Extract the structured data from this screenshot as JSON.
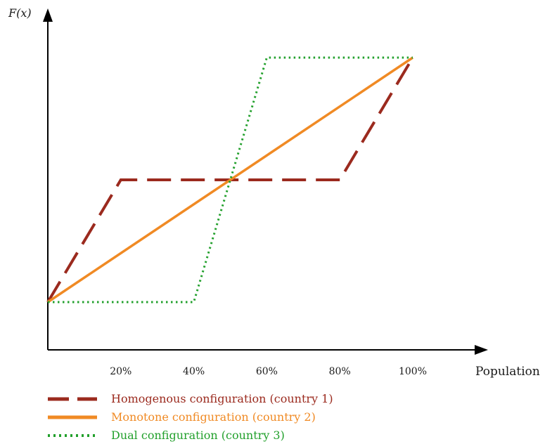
{
  "chart_data": {
    "type": "line",
    "title": "",
    "xlabel": "Population",
    "ylabel": "F(x)",
    "x_ticks": [
      "20%",
      "40%",
      "60%",
      "80%",
      "100%"
    ],
    "xlim": [
      0,
      100
    ],
    "grid": false,
    "legend_position": "bottom-left",
    "series": [
      {
        "name": "Homogenous configuration (country 1)",
        "style": "dashed",
        "color": "#9b2a1e",
        "x": [
          0,
          20,
          80,
          100
        ],
        "y": [
          0.0,
          0.5,
          0.5,
          1.0
        ]
      },
      {
        "name": "Monotone configuration (country 2)",
        "style": "solid",
        "color": "#f08a24",
        "x": [
          0,
          100
        ],
        "y": [
          0.0,
          1.0
        ]
      },
      {
        "name": "Dual configuration (country 3)",
        "style": "dotted",
        "color": "#22a02c",
        "x": [
          0,
          40,
          60,
          100
        ],
        "y": [
          0.0,
          0.0,
          1.0,
          1.0
        ]
      }
    ]
  }
}
